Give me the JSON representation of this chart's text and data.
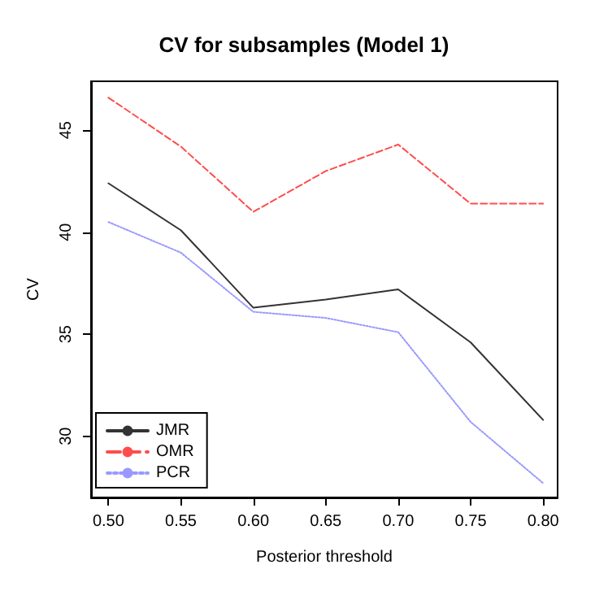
{
  "chart_data": {
    "type": "line",
    "title": "CV for subsamples (Model 1)",
    "xlabel": "Posterior threshold",
    "ylabel": "CV",
    "x": [
      0.5,
      0.55,
      0.6,
      0.65,
      0.7,
      0.75,
      0.8
    ],
    "series": [
      {
        "name": "JMR",
        "color": "#333333",
        "line_style": "solid",
        "values": [
          42.4,
          40.1,
          36.3,
          36.7,
          37.2,
          34.6,
          30.8
        ]
      },
      {
        "name": "OMR",
        "color": "#ff4d4d",
        "line_style": "dashed",
        "values": [
          46.6,
          44.2,
          41.0,
          43.0,
          44.3,
          41.4,
          41.4
        ]
      },
      {
        "name": "PCR",
        "color": "#9999ff",
        "line_style": "dotted",
        "values": [
          40.5,
          39.0,
          36.1,
          35.8,
          35.1,
          30.7,
          27.7
        ]
      }
    ],
    "xlim": [
      0.488,
      0.81
    ],
    "ylim": [
      27,
      47.4
    ],
    "xticks": [
      {
        "value": 0.5,
        "label": "0.50"
      },
      {
        "value": 0.55,
        "label": "0.55"
      },
      {
        "value": 0.6,
        "label": "0.60"
      },
      {
        "value": 0.65,
        "label": "0.65"
      },
      {
        "value": 0.7,
        "label": "0.70"
      },
      {
        "value": 0.75,
        "label": "0.75"
      },
      {
        "value": 0.8,
        "label": "0.80"
      }
    ],
    "yticks": [
      30,
      35,
      40,
      45
    ],
    "grid": false,
    "legend": "bottom left",
    "marker": "none"
  }
}
